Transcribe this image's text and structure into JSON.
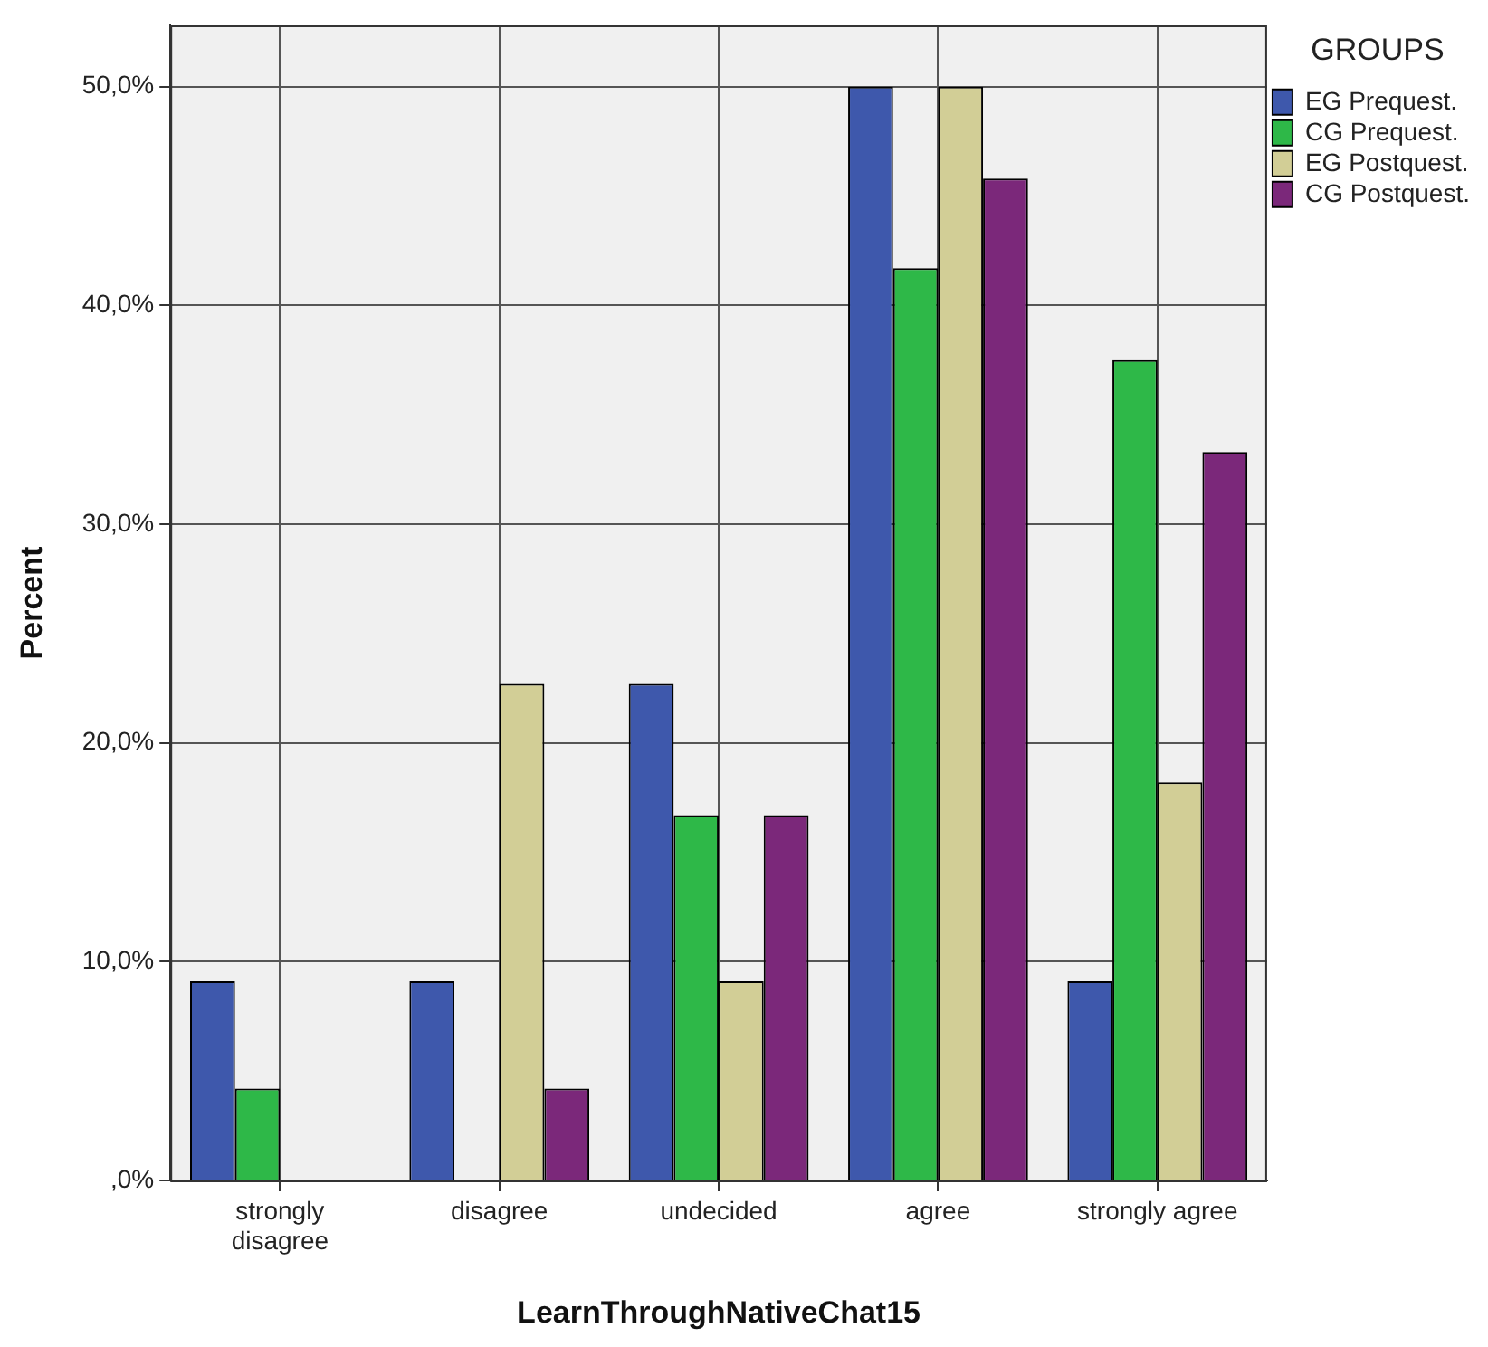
{
  "chart_data": {
    "type": "bar",
    "xlabel": "LearnThroughNativeChat15",
    "ylabel": "Percent",
    "legend_title": "GROUPS",
    "categories": [
      "strongly disagree",
      "disagree",
      "undecided",
      "agree",
      "strongly agree"
    ],
    "series": [
      {
        "name": "EG Prequest.",
        "color": "#3e58ac",
        "values": [
          9.1,
          9.1,
          22.7,
          50.0,
          9.1
        ]
      },
      {
        "name": "CG Prequest.",
        "color": "#2eb848",
        "values": [
          4.2,
          0,
          16.7,
          41.7,
          37.5
        ]
      },
      {
        "name": "EG Postquest.",
        "color": "#d2ce96",
        "values": [
          0,
          22.7,
          9.1,
          50.0,
          18.2
        ]
      },
      {
        "name": "CG Postquest.",
        "color": "#7b287a",
        "values": [
          0,
          4.2,
          16.7,
          45.8,
          33.3
        ]
      }
    ],
    "ylim": [
      0,
      52.8
    ],
    "yticks": [
      {
        "value": 0,
        "label": ",0%"
      },
      {
        "value": 10,
        "label": "10,0%"
      },
      {
        "value": 20,
        "label": "20,0%"
      },
      {
        "value": 30,
        "label": "30,0%"
      },
      {
        "value": 40,
        "label": "40,0%"
      },
      {
        "value": 50,
        "label": "50,0%"
      }
    ],
    "grid": true,
    "legend": "top right"
  }
}
